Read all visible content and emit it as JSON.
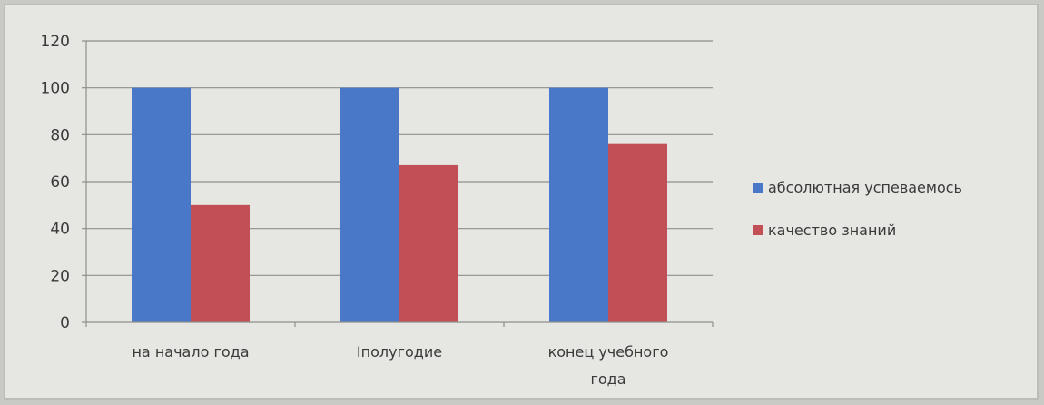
{
  "chart_data": {
    "type": "bar",
    "title": "",
    "xlabel": "",
    "ylabel": "",
    "categories": [
      [
        "на начало года"
      ],
      [
        "Iполугодие"
      ],
      [
        "конец учебного",
        "года"
      ]
    ],
    "series": [
      {
        "name": "абсолютная успеваемось",
        "values": [
          100,
          100,
          100
        ],
        "color": "#4a78c8"
      },
      {
        "name": "качество знаний",
        "values": [
          50,
          67,
          76
        ],
        "color": "#c24f55"
      }
    ],
    "ylim": [
      0,
      120
    ],
    "yticks": [
      0,
      20,
      40,
      60,
      80,
      100,
      120
    ],
    "grid": true,
    "legend_position": "right"
  }
}
